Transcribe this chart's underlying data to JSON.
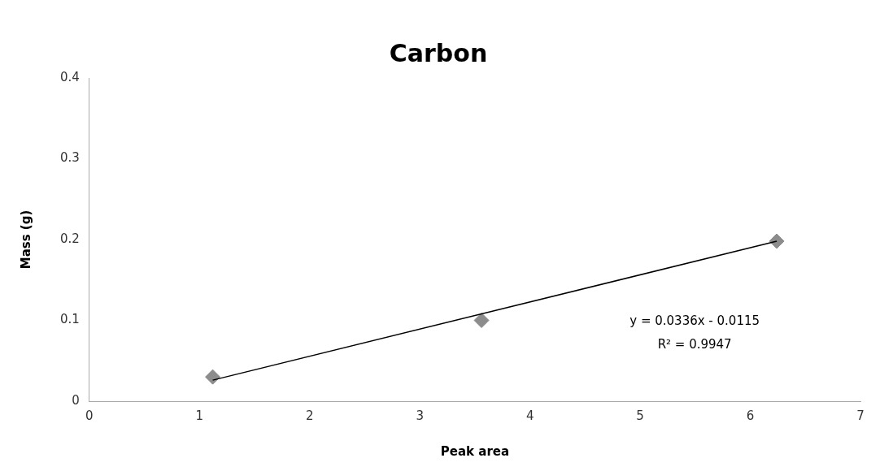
{
  "chart_data": {
    "type": "scatter",
    "title": "Carbon",
    "xlabel": "Peak area",
    "ylabel": "Mass (g)",
    "series": [
      {
        "color": "#8c8c8c",
        "x": [
          1.12,
          3.56,
          6.24
        ],
        "values": [
          0.03,
          0.1,
          0.198
        ],
        "marker": "diamond"
      },
      {
        "type": "line",
        "color": "#000000",
        "x": [
          1.12,
          6.24
        ],
        "values": [
          0.026,
          0.198
        ],
        "marker": "none"
      }
    ],
    "xlim": [
      0,
      7
    ],
    "xticks": [
      0,
      1,
      2,
      3,
      4,
      5,
      6,
      7
    ],
    "ylim": [
      0,
      0.4
    ],
    "yticks": [
      0,
      0.1,
      0.2,
      0.3,
      0.4
    ],
    "grid": false,
    "legend": false,
    "annotations": [
      "y = 0.0336x - 0.0115",
      "R² = 0.9947"
    ]
  }
}
